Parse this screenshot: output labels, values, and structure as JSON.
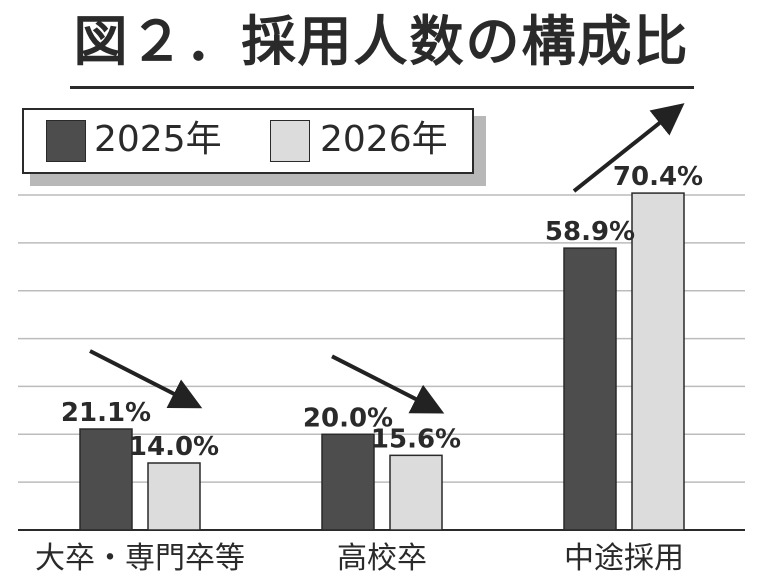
{
  "colors": {
    "series_2025": "#4d4d4d",
    "series_2026": "#dcdcdc",
    "outline": "#2a2a2a",
    "grid": "#bcbcbc",
    "arrow": "#222222"
  },
  "chart_data": {
    "type": "bar",
    "title": "図２．採用人数の構成比",
    "categories": [
      "大卒・専門卒等",
      "高校卒",
      "中途採用"
    ],
    "series": [
      {
        "name": "2025年",
        "values": [
          21.1,
          20.0,
          58.9
        ],
        "labels": [
          "21.1%",
          "20.0%",
          "58.9%"
        ]
      },
      {
        "name": "2026年",
        "values": [
          14.0,
          15.6,
          70.4
        ],
        "labels": [
          "14.0%",
          "15.6%",
          "70.4%"
        ]
      }
    ],
    "ylim": [
      0,
      70
    ],
    "grid": true,
    "legend": "top-left",
    "trend_arrows": [
      "down",
      "down",
      "up"
    ]
  }
}
